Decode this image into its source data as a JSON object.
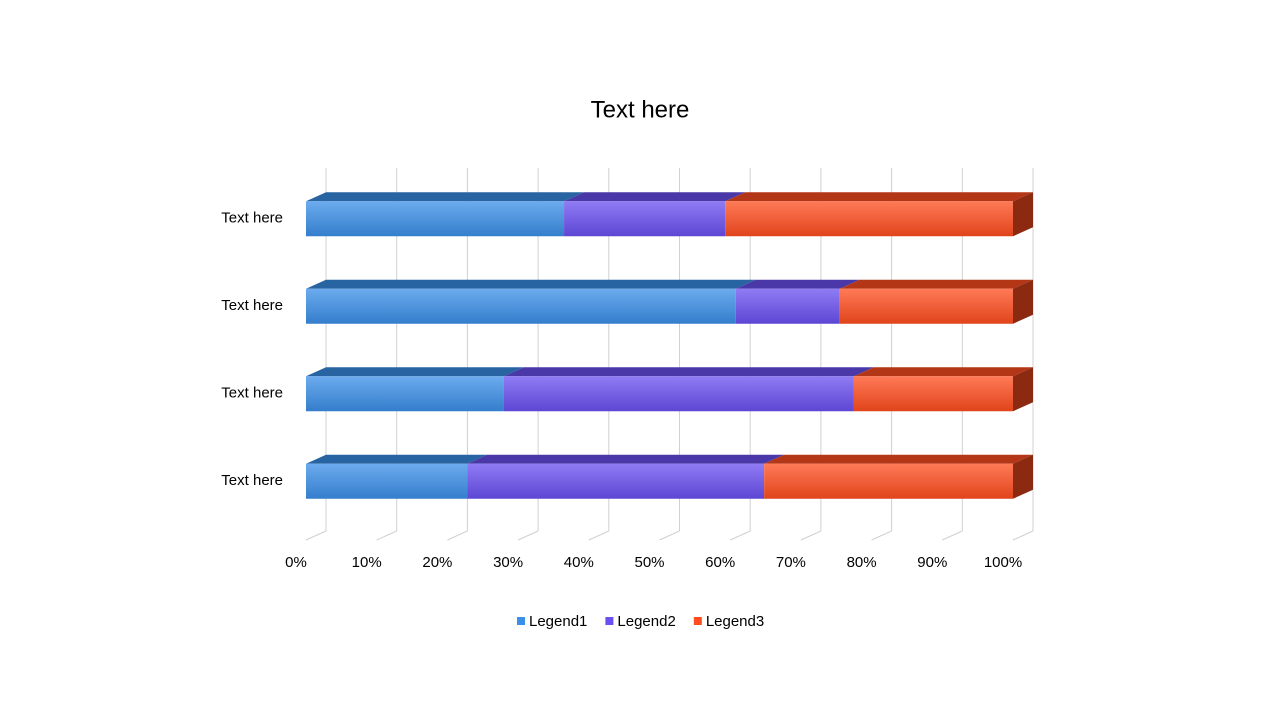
{
  "chart_data": {
    "type": "bar",
    "stacked": "percent",
    "orientation": "horizontal",
    "title": "Text here",
    "categories": [
      "Text here",
      "Text here",
      "Text here",
      "Text here"
    ],
    "series": [
      {
        "name": "Legend1",
        "color": "#3b8fe8",
        "values": [
          22.8,
          28.0,
          60.8,
          36.5
        ]
      },
      {
        "name": "Legend2",
        "color": "#6a50f0",
        "values": [
          42.0,
          49.5,
          14.7,
          22.8
        ]
      },
      {
        "name": "Legend3",
        "color": "#ff4d1f",
        "values": [
          35.2,
          22.5,
          24.5,
          40.7
        ]
      }
    ],
    "xlim": [
      0,
      100
    ],
    "xticks": [
      {
        "value": 0,
        "label": "0%"
      },
      {
        "value": 10,
        "label": "10%"
      },
      {
        "value": 20,
        "label": "20%"
      },
      {
        "value": 30,
        "label": "30%"
      },
      {
        "value": 40,
        "label": "40%"
      },
      {
        "value": 50,
        "label": "50%"
      },
      {
        "value": 60,
        "label": "60%"
      },
      {
        "value": 70,
        "label": "70%"
      },
      {
        "value": 80,
        "label": "80%"
      },
      {
        "value": 90,
        "label": "90%"
      },
      {
        "value": 100,
        "label": "100%"
      }
    ],
    "grid": true,
    "legend": "bottom"
  }
}
